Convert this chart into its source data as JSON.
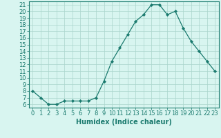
{
  "x": [
    0,
    1,
    2,
    3,
    4,
    5,
    6,
    7,
    8,
    9,
    10,
    11,
    12,
    13,
    14,
    15,
    16,
    17,
    18,
    19,
    20,
    21,
    22,
    23
  ],
  "y": [
    8,
    7,
    6,
    6,
    6.5,
    6.5,
    6.5,
    6.5,
    7,
    9.5,
    12.5,
    14.5,
    16.5,
    18.5,
    19.5,
    21,
    21,
    19.5,
    20,
    17.5,
    15.5,
    14,
    12.5,
    11
  ],
  "line_color": "#1a7a6e",
  "marker": "D",
  "marker_size": 2.2,
  "bg_color": "#d8f5f0",
  "grid_color": "#aad4cc",
  "xlabel": "Humidex (Indice chaleur)",
  "xlabel_fontsize": 7,
  "tick_fontsize": 6,
  "ylim": [
    5.5,
    21.5
  ],
  "xlim": [
    -0.5,
    23.5
  ],
  "yticks": [
    6,
    7,
    8,
    9,
    10,
    11,
    12,
    13,
    14,
    15,
    16,
    17,
    18,
    19,
    20,
    21
  ],
  "xticks": [
    0,
    1,
    2,
    3,
    4,
    5,
    6,
    7,
    8,
    9,
    10,
    11,
    12,
    13,
    14,
    15,
    16,
    17,
    18,
    19,
    20,
    21,
    22,
    23
  ]
}
